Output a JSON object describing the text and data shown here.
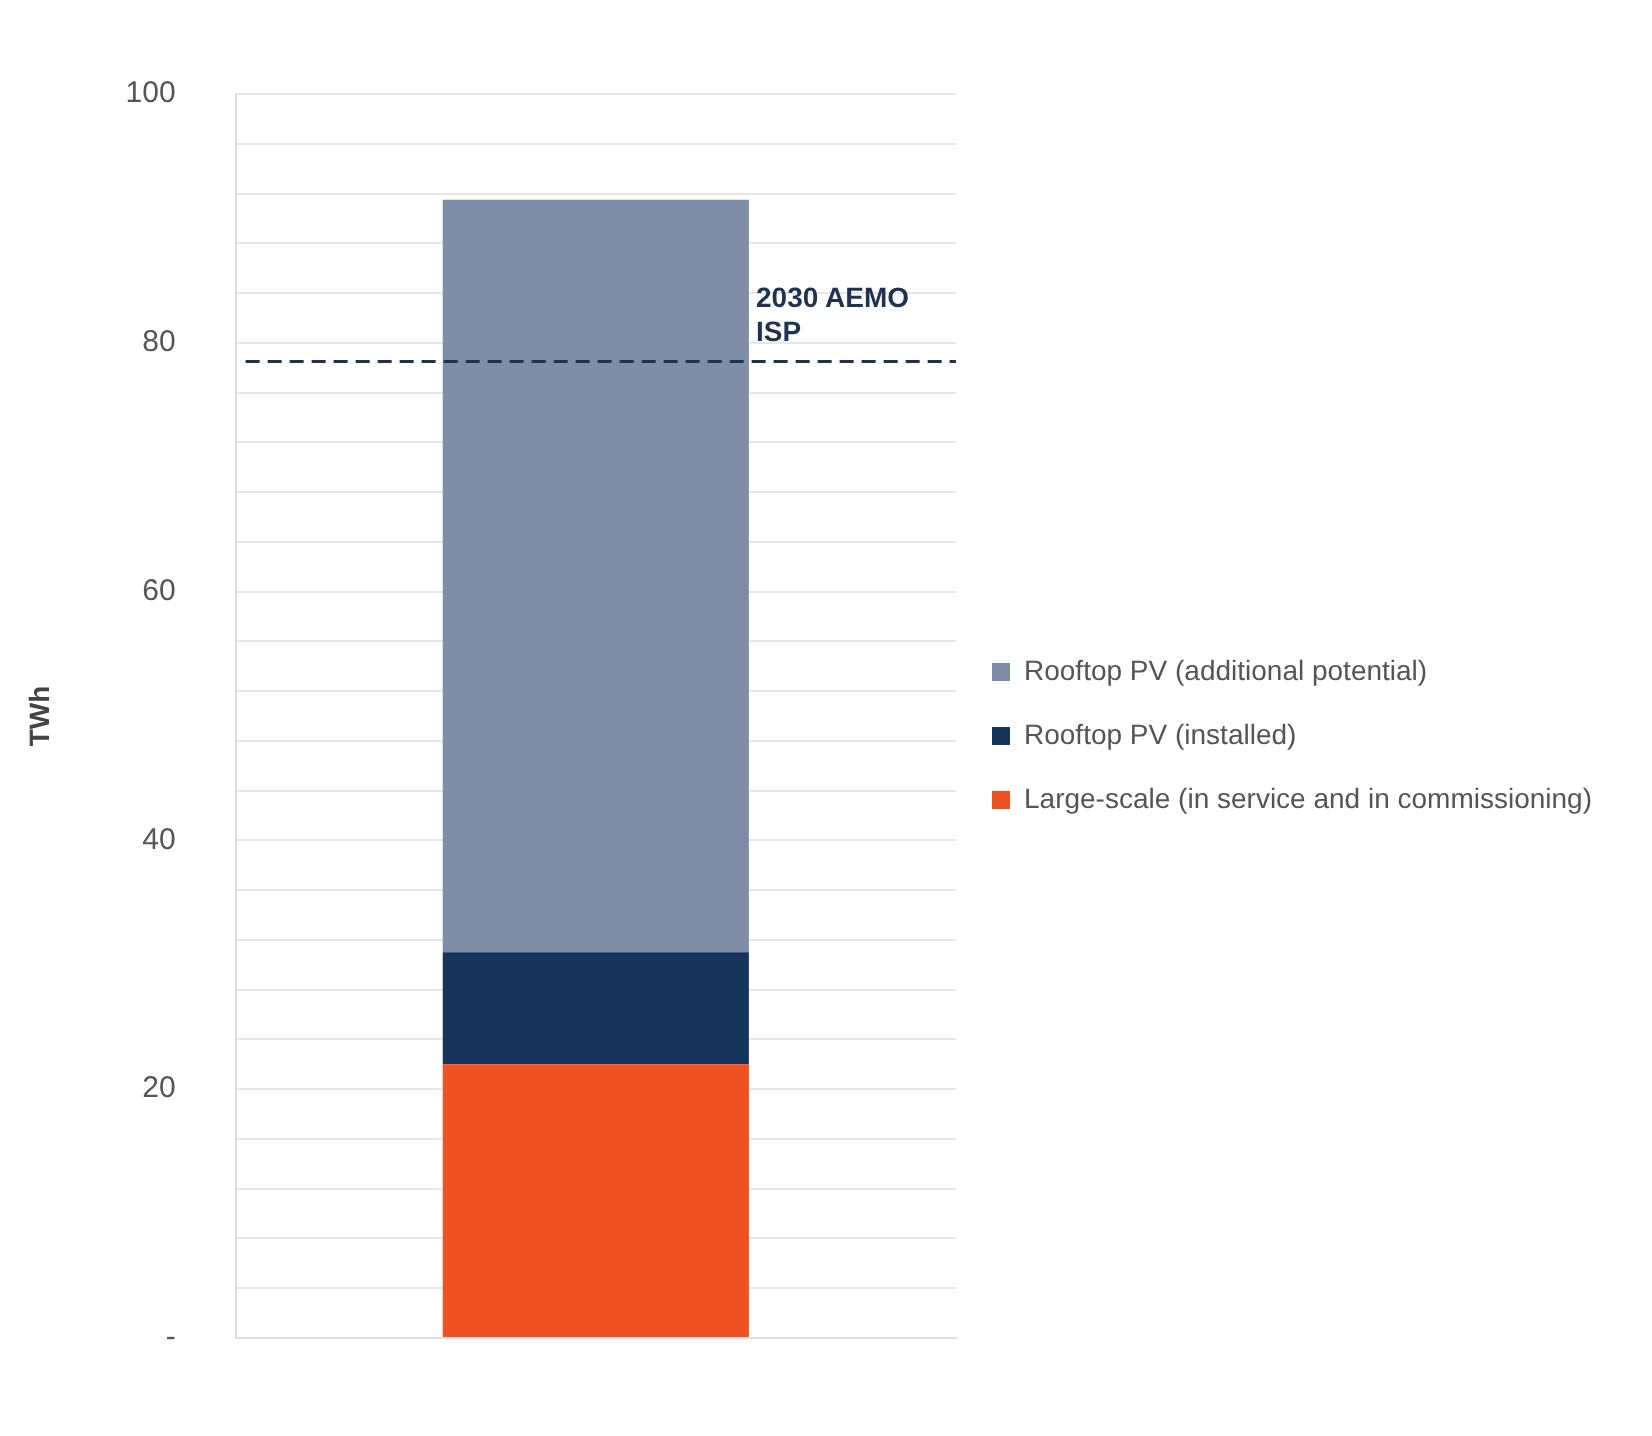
{
  "chart_data": {
    "type": "bar",
    "stacked": true,
    "ylabel": "TWh",
    "categories": [
      null
    ],
    "series": [
      {
        "name": "Large-scale (in service and in commissioning)",
        "color": "#f05123",
        "values": [
          22
        ]
      },
      {
        "name": "Rooftop PV (installed)",
        "color": "#17355a",
        "values": [
          9
        ]
      },
      {
        "name": "Rooftop PV (additional potential)",
        "color": "#7d8ea6",
        "values": [
          60.5
        ]
      }
    ],
    "ylim": [
      0,
      100
    ],
    "yticks": [
      {
        "value": 0,
        "label": "-"
      },
      {
        "value": 4,
        "label": null
      },
      {
        "value": 8,
        "label": null
      },
      {
        "value": 12,
        "label": null
      },
      {
        "value": 16,
        "label": null
      },
      20,
      {
        "value": 24,
        "label": null
      },
      {
        "value": 28,
        "label": null
      },
      {
        "value": 32,
        "label": null
      },
      {
        "value": 36,
        "label": null
      },
      40,
      {
        "value": 44,
        "label": null
      },
      {
        "value": 48,
        "label": null
      },
      {
        "value": 52,
        "label": null
      },
      {
        "value": 56,
        "label": null
      },
      60,
      {
        "value": 64,
        "label": null
      },
      {
        "value": 68,
        "label": null
      },
      {
        "value": 72,
        "label": null
      },
      {
        "value": 76,
        "label": null
      },
      80,
      {
        "value": 84,
        "label": null
      },
      {
        "value": 88,
        "label": null
      },
      {
        "value": 92,
        "label": null
      },
      {
        "value": 96,
        "label": null
      },
      100
    ],
    "ref_lines": [
      {
        "axis": "y",
        "value": 78.5,
        "label": "2030 AEMO\nISP",
        "color": "#1f3350",
        "line_style": "dashed"
      }
    ],
    "grid": "y",
    "legend": "right",
    "tick_labels": "y"
  }
}
